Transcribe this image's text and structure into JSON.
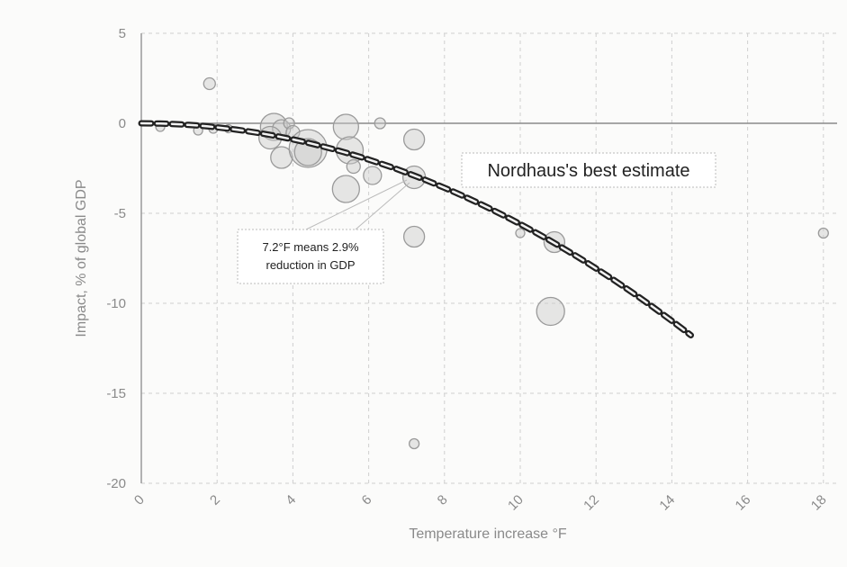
{
  "chart_data": {
    "type": "scatter",
    "title": "",
    "xlabel": "Temperature increase °F",
    "ylabel": "Impact, % of global GDP",
    "xlim": [
      0,
      18
    ],
    "ylim": [
      -20,
      5
    ],
    "xticks": [
      "0",
      "2",
      "4",
      "6",
      "8",
      "10",
      "12",
      "14",
      "16",
      "18"
    ],
    "yticks": [
      "5",
      "0",
      "-5",
      "-10",
      "-15",
      "-20"
    ],
    "xtick_values": [
      0,
      2,
      4,
      6,
      8,
      10,
      12,
      14,
      16,
      18
    ],
    "ytick_values": [
      5,
      0,
      -5,
      -10,
      -15,
      -20
    ],
    "grid": true,
    "points": [
      {
        "x": 0.5,
        "y": -0.2,
        "size": 1
      },
      {
        "x": 1.8,
        "y": 2.2,
        "size": 1.3
      },
      {
        "x": 1.5,
        "y": -0.4,
        "size": 1
      },
      {
        "x": 1.9,
        "y": -0.3,
        "size": 1
      },
      {
        "x": 2.3,
        "y": -0.3,
        "size": 0.9
      },
      {
        "x": 3.5,
        "y": -0.2,
        "size": 3
      },
      {
        "x": 3.7,
        "y": -0.3,
        "size": 2
      },
      {
        "x": 3.9,
        "y": 0,
        "size": 1.2
      },
      {
        "x": 4.0,
        "y": -0.5,
        "size": 1.5
      },
      {
        "x": 3.4,
        "y": -0.8,
        "size": 2.5
      },
      {
        "x": 3.7,
        "y": -1.9,
        "size": 2.4
      },
      {
        "x": 4.4,
        "y": -1.4,
        "size": 4.2
      },
      {
        "x": 4.4,
        "y": -1.6,
        "size": 3
      },
      {
        "x": 5.4,
        "y": -0.2,
        "size": 2.8
      },
      {
        "x": 5.5,
        "y": -1.5,
        "size": 3
      },
      {
        "x": 5.6,
        "y": -2.4,
        "size": 1.5
      },
      {
        "x": 5.4,
        "y": -3.65,
        "size": 3
      },
      {
        "x": 6.1,
        "y": -2.9,
        "size": 2
      },
      {
        "x": 6.3,
        "y": 0,
        "size": 1.2
      },
      {
        "x": 7.2,
        "y": -0.9,
        "size": 2.3
      },
      {
        "x": 7.2,
        "y": -3.0,
        "size": 2.5
      },
      {
        "x": 7.2,
        "y": -6.3,
        "size": 2.3
      },
      {
        "x": 7.2,
        "y": -17.8,
        "size": 1.1
      },
      {
        "x": 10.0,
        "y": -6.1,
        "size": 1
      },
      {
        "x": 10.9,
        "y": -6.6,
        "size": 2.3
      },
      {
        "x": 10.8,
        "y": -10.45,
        "size": 3.1
      },
      {
        "x": 18.0,
        "y": -6.1,
        "size": 1.1
      }
    ],
    "fit_line": {
      "name": "Nordhaus's best estimate",
      "formula": "y = -0.056 x^2",
      "x_range": [
        0,
        14.5
      ]
    },
    "annotations": [
      {
        "text": "Nordhaus's best estimate"
      },
      {
        "text_line1": "7.2°F means 2.9%",
        "text_line2": "reduction in GDP",
        "x": 7.2,
        "y": -2.9
      }
    ],
    "colors": {
      "bubble_fill": "#c9c9c9",
      "bubble_stroke": "#9a9a9a",
      "line": "#222222",
      "grid": "#cfcfcf",
      "zero": "#8a8a8a"
    }
  }
}
